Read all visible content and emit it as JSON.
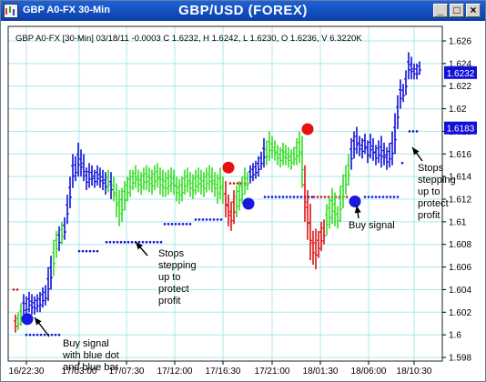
{
  "window": {
    "title": "GBP A0-FX 30-Min",
    "center_title": "GBP/USD (FOREX)",
    "buttons": {
      "minimize": "_",
      "maximize": "□",
      "close": "×"
    }
  },
  "info_line": "GBP A0-FX [30-Min] 03/18/11 -0.0003 C 1.6232, H 1.6242, L 1.6230, O 1.6236, V 6.3220K",
  "chart_data": {
    "type": "ohlc-bar",
    "x_ticks": [
      "16/22:30",
      "17/03:00",
      "17/07:30",
      "17/12:00",
      "17/16:30",
      "17/21:00",
      "18/01:30",
      "18/06:00",
      "18/10:30"
    ],
    "y_ticks": [
      "1.626",
      "1.624",
      "1.622",
      "1.62",
      "1.618",
      "1.616",
      "1.614",
      "1.612",
      "1.61",
      "1.608",
      "1.606",
      "1.604",
      "1.602",
      "1.6",
      "1.598"
    ],
    "ylim": [
      1.598,
      1.626
    ],
    "last_price": "1.6232",
    "stop_price": "1.6183",
    "grid": true,
    "colors": {
      "up_bar": "#1010d8",
      "neutral_bar": "#33dd22",
      "down_bar": "#e01010",
      "price_box": "#1010d8",
      "grid": "#a8e8ec"
    },
    "bars": [
      {
        "x": 16,
        "h": 1.6018,
        "l": 1.6002,
        "c": "r"
      },
      {
        "x": 19,
        "h": 1.602,
        "l": 1.6004,
        "c": "g"
      },
      {
        "x": 22,
        "h": 1.6028,
        "l": 1.6008,
        "c": "g"
      },
      {
        "x": 25,
        "h": 1.6036,
        "l": 1.6014,
        "c": "b"
      },
      {
        "x": 28,
        "h": 1.6034,
        "l": 1.6016,
        "c": "b"
      },
      {
        "x": 31,
        "h": 1.6038,
        "l": 1.602,
        "c": "b"
      },
      {
        "x": 34,
        "h": 1.6036,
        "l": 1.6018,
        "c": "b"
      },
      {
        "x": 37,
        "h": 1.6034,
        "l": 1.6018,
        "c": "b"
      },
      {
        "x": 40,
        "h": 1.6036,
        "l": 1.602,
        "c": "b"
      },
      {
        "x": 43,
        "h": 1.6038,
        "l": 1.602,
        "c": "b"
      },
      {
        "x": 46,
        "h": 1.6042,
        "l": 1.6024,
        "c": "b"
      },
      {
        "x": 49,
        "h": 1.6044,
        "l": 1.6026,
        "c": "b"
      },
      {
        "x": 52,
        "h": 1.606,
        "l": 1.603,
        "c": "b"
      },
      {
        "x": 55,
        "h": 1.607,
        "l": 1.604,
        "c": "b"
      },
      {
        "x": 58,
        "h": 1.6084,
        "l": 1.6052,
        "c": "g"
      },
      {
        "x": 61,
        "h": 1.6092,
        "l": 1.6068,
        "c": "g"
      },
      {
        "x": 64,
        "h": 1.6096,
        "l": 1.6074,
        "c": "b"
      },
      {
        "x": 67,
        "h": 1.61,
        "l": 1.608,
        "c": "g"
      },
      {
        "x": 70,
        "h": 1.6104,
        "l": 1.6084,
        "c": "b"
      },
      {
        "x": 73,
        "h": 1.6124,
        "l": 1.6098,
        "c": "b"
      },
      {
        "x": 76,
        "h": 1.614,
        "l": 1.6112,
        "c": "b"
      },
      {
        "x": 79,
        "h": 1.616,
        "l": 1.613,
        "c": "b"
      },
      {
        "x": 82,
        "h": 1.6158,
        "l": 1.6136,
        "c": "b"
      },
      {
        "x": 85,
        "h": 1.617,
        "l": 1.614,
        "c": "b"
      },
      {
        "x": 88,
        "h": 1.6164,
        "l": 1.614,
        "c": "b"
      },
      {
        "x": 91,
        "h": 1.616,
        "l": 1.6136,
        "c": "b"
      },
      {
        "x": 94,
        "h": 1.6148,
        "l": 1.6128,
        "c": "b"
      },
      {
        "x": 97,
        "h": 1.6152,
        "l": 1.613,
        "c": "b"
      },
      {
        "x": 100,
        "h": 1.615,
        "l": 1.6132,
        "c": "b"
      },
      {
        "x": 103,
        "h": 1.6146,
        "l": 1.613,
        "c": "b"
      },
      {
        "x": 106,
        "h": 1.615,
        "l": 1.6132,
        "c": "b"
      },
      {
        "x": 109,
        "h": 1.6148,
        "l": 1.613,
        "c": "b"
      },
      {
        "x": 112,
        "h": 1.6146,
        "l": 1.6128,
        "c": "b"
      },
      {
        "x": 115,
        "h": 1.6144,
        "l": 1.6124,
        "c": "b"
      },
      {
        "x": 118,
        "h": 1.6146,
        "l": 1.6126,
        "c": "g"
      },
      {
        "x": 121,
        "h": 1.6144,
        "l": 1.612,
        "c": "b"
      },
      {
        "x": 124,
        "h": 1.614,
        "l": 1.6118,
        "c": "g"
      },
      {
        "x": 127,
        "h": 1.6134,
        "l": 1.6104,
        "c": "g"
      },
      {
        "x": 130,
        "h": 1.6128,
        "l": 1.6096,
        "c": "g"
      },
      {
        "x": 133,
        "h": 1.613,
        "l": 1.61,
        "c": "g"
      },
      {
        "x": 136,
        "h": 1.6136,
        "l": 1.611,
        "c": "g"
      },
      {
        "x": 139,
        "h": 1.614,
        "l": 1.6118,
        "c": "g"
      },
      {
        "x": 142,
        "h": 1.6146,
        "l": 1.6122,
        "c": "g"
      },
      {
        "x": 145,
        "h": 1.6146,
        "l": 1.6128,
        "c": "g"
      },
      {
        "x": 148,
        "h": 1.615,
        "l": 1.613,
        "c": "g"
      },
      {
        "x": 151,
        "h": 1.6146,
        "l": 1.6126,
        "c": "g"
      },
      {
        "x": 154,
        "h": 1.6144,
        "l": 1.6124,
        "c": "g"
      },
      {
        "x": 157,
        "h": 1.6148,
        "l": 1.6128,
        "c": "g"
      },
      {
        "x": 160,
        "h": 1.615,
        "l": 1.6128,
        "c": "g"
      },
      {
        "x": 163,
        "h": 1.6148,
        "l": 1.6126,
        "c": "g"
      },
      {
        "x": 166,
        "h": 1.6146,
        "l": 1.6124,
        "c": "g"
      },
      {
        "x": 169,
        "h": 1.615,
        "l": 1.6128,
        "c": "g"
      },
      {
        "x": 172,
        "h": 1.6152,
        "l": 1.613,
        "c": "g"
      },
      {
        "x": 175,
        "h": 1.6148,
        "l": 1.6124,
        "c": "g"
      },
      {
        "x": 178,
        "h": 1.6146,
        "l": 1.6122,
        "c": "g"
      },
      {
        "x": 181,
        "h": 1.6144,
        "l": 1.6122,
        "c": "g"
      },
      {
        "x": 184,
        "h": 1.6146,
        "l": 1.6124,
        "c": "g"
      },
      {
        "x": 187,
        "h": 1.6148,
        "l": 1.6126,
        "c": "g"
      },
      {
        "x": 190,
        "h": 1.6146,
        "l": 1.6124,
        "c": "g"
      },
      {
        "x": 193,
        "h": 1.614,
        "l": 1.6118,
        "c": "g"
      },
      {
        "x": 196,
        "h": 1.6138,
        "l": 1.6116,
        "c": "g"
      },
      {
        "x": 199,
        "h": 1.614,
        "l": 1.6118,
        "c": "g"
      },
      {
        "x": 202,
        "h": 1.6146,
        "l": 1.6124,
        "c": "g"
      },
      {
        "x": 205,
        "h": 1.6148,
        "l": 1.6126,
        "c": "g"
      },
      {
        "x": 208,
        "h": 1.6144,
        "l": 1.6122,
        "c": "g"
      },
      {
        "x": 211,
        "h": 1.6142,
        "l": 1.612,
        "c": "g"
      },
      {
        "x": 214,
        "h": 1.6146,
        "l": 1.6124,
        "c": "g"
      },
      {
        "x": 217,
        "h": 1.6148,
        "l": 1.6126,
        "c": "g"
      },
      {
        "x": 220,
        "h": 1.6146,
        "l": 1.6124,
        "c": "g"
      },
      {
        "x": 223,
        "h": 1.6144,
        "l": 1.6122,
        "c": "g"
      },
      {
        "x": 226,
        "h": 1.6148,
        "l": 1.6126,
        "c": "g"
      },
      {
        "x": 229,
        "h": 1.615,
        "l": 1.6128,
        "c": "g"
      },
      {
        "x": 232,
        "h": 1.6148,
        "l": 1.6126,
        "c": "g"
      },
      {
        "x": 235,
        "h": 1.6144,
        "l": 1.6122,
        "c": "g"
      },
      {
        "x": 238,
        "h": 1.6142,
        "l": 1.6116,
        "c": "g"
      },
      {
        "x": 241,
        "h": 1.6148,
        "l": 1.612,
        "c": "g"
      },
      {
        "x": 244,
        "h": 1.614,
        "l": 1.6116,
        "c": "g"
      },
      {
        "x": 247,
        "h": 1.6136,
        "l": 1.6104,
        "c": "r"
      },
      {
        "x": 250,
        "h": 1.6124,
        "l": 1.6096,
        "c": "r"
      },
      {
        "x": 253,
        "h": 1.6118,
        "l": 1.6092,
        "c": "r"
      },
      {
        "x": 256,
        "h": 1.6128,
        "l": 1.6098,
        "c": "r"
      },
      {
        "x": 259,
        "h": 1.6132,
        "l": 1.6104,
        "c": "g"
      },
      {
        "x": 262,
        "h": 1.6136,
        "l": 1.611,
        "c": "g"
      },
      {
        "x": 265,
        "h": 1.614,
        "l": 1.6116,
        "c": "g"
      },
      {
        "x": 268,
        "h": 1.6148,
        "l": 1.6124,
        "c": "g"
      },
      {
        "x": 271,
        "h": 1.6144,
        "l": 1.6128,
        "c": "g"
      },
      {
        "x": 274,
        "h": 1.615,
        "l": 1.6134,
        "c": "b"
      },
      {
        "x": 277,
        "h": 1.6152,
        "l": 1.6136,
        "c": "b"
      },
      {
        "x": 280,
        "h": 1.6154,
        "l": 1.6138,
        "c": "b"
      },
      {
        "x": 283,
        "h": 1.6158,
        "l": 1.614,
        "c": "b"
      },
      {
        "x": 286,
        "h": 1.6162,
        "l": 1.6146,
        "c": "b"
      },
      {
        "x": 289,
        "h": 1.6174,
        "l": 1.6148,
        "c": "b"
      },
      {
        "x": 292,
        "h": 1.6172,
        "l": 1.615,
        "c": "g"
      },
      {
        "x": 295,
        "h": 1.618,
        "l": 1.6154,
        "c": "g"
      },
      {
        "x": 298,
        "h": 1.6176,
        "l": 1.6156,
        "c": "g"
      },
      {
        "x": 301,
        "h": 1.6172,
        "l": 1.6154,
        "c": "g"
      },
      {
        "x": 304,
        "h": 1.6168,
        "l": 1.615,
        "c": "g"
      },
      {
        "x": 307,
        "h": 1.6166,
        "l": 1.6148,
        "c": "g"
      },
      {
        "x": 310,
        "h": 1.617,
        "l": 1.615,
        "c": "g"
      },
      {
        "x": 313,
        "h": 1.6168,
        "l": 1.615,
        "c": "g"
      },
      {
        "x": 316,
        "h": 1.6166,
        "l": 1.6148,
        "c": "g"
      },
      {
        "x": 319,
        "h": 1.6164,
        "l": 1.6146,
        "c": "g"
      },
      {
        "x": 322,
        "h": 1.6166,
        "l": 1.615,
        "c": "g"
      },
      {
        "x": 325,
        "h": 1.6174,
        "l": 1.615,
        "c": "g"
      },
      {
        "x": 328,
        "h": 1.618,
        "l": 1.6152,
        "c": "g"
      },
      {
        "x": 331,
        "h": 1.6176,
        "l": 1.613,
        "c": "g"
      },
      {
        "x": 334,
        "h": 1.615,
        "l": 1.61,
        "c": "r"
      },
      {
        "x": 337,
        "h": 1.6128,
        "l": 1.6084,
        "c": "r"
      },
      {
        "x": 340,
        "h": 1.6116,
        "l": 1.6066,
        "c": "r"
      },
      {
        "x": 343,
        "h": 1.6092,
        "l": 1.6062,
        "c": "r"
      },
      {
        "x": 346,
        "h": 1.6094,
        "l": 1.6058,
        "c": "r"
      },
      {
        "x": 349,
        "h": 1.6092,
        "l": 1.6068,
        "c": "r"
      },
      {
        "x": 352,
        "h": 1.61,
        "l": 1.6074,
        "c": "r"
      },
      {
        "x": 355,
        "h": 1.6102,
        "l": 1.608,
        "c": "r"
      },
      {
        "x": 358,
        "h": 1.6116,
        "l": 1.6088,
        "c": "g"
      },
      {
        "x": 361,
        "h": 1.6122,
        "l": 1.6094,
        "c": "g"
      },
      {
        "x": 364,
        "h": 1.613,
        "l": 1.6098,
        "c": "g"
      },
      {
        "x": 367,
        "h": 1.6126,
        "l": 1.6096,
        "c": "g"
      },
      {
        "x": 370,
        "h": 1.6114,
        "l": 1.6094,
        "c": "g"
      },
      {
        "x": 373,
        "h": 1.6132,
        "l": 1.61,
        "c": "g"
      },
      {
        "x": 376,
        "h": 1.6142,
        "l": 1.6112,
        "c": "g"
      },
      {
        "x": 379,
        "h": 1.615,
        "l": 1.6124,
        "c": "g"
      },
      {
        "x": 382,
        "h": 1.616,
        "l": 1.6132,
        "c": "g"
      },
      {
        "x": 385,
        "h": 1.6174,
        "l": 1.6146,
        "c": "b"
      },
      {
        "x": 388,
        "h": 1.618,
        "l": 1.6156,
        "c": "b"
      },
      {
        "x": 391,
        "h": 1.6184,
        "l": 1.616,
        "c": "b"
      },
      {
        "x": 394,
        "h": 1.6176,
        "l": 1.6158,
        "c": "b"
      },
      {
        "x": 397,
        "h": 1.6174,
        "l": 1.6156,
        "c": "b"
      },
      {
        "x": 400,
        "h": 1.6178,
        "l": 1.616,
        "c": "b"
      },
      {
        "x": 403,
        "h": 1.6172,
        "l": 1.6152,
        "c": "b"
      },
      {
        "x": 406,
        "h": 1.6178,
        "l": 1.6156,
        "c": "b"
      },
      {
        "x": 409,
        "h": 1.6174,
        "l": 1.6154,
        "c": "b"
      },
      {
        "x": 412,
        "h": 1.6168,
        "l": 1.615,
        "c": "b"
      },
      {
        "x": 415,
        "h": 1.6172,
        "l": 1.6152,
        "c": "b"
      },
      {
        "x": 418,
        "h": 1.6176,
        "l": 1.6148,
        "c": "b"
      },
      {
        "x": 421,
        "h": 1.617,
        "l": 1.615,
        "c": "b"
      },
      {
        "x": 424,
        "h": 1.6166,
        "l": 1.6146,
        "c": "b"
      },
      {
        "x": 427,
        "h": 1.617,
        "l": 1.6148,
        "c": "b"
      },
      {
        "x": 430,
        "h": 1.618,
        "l": 1.615,
        "c": "b"
      },
      {
        "x": 433,
        "h": 1.6196,
        "l": 1.616,
        "c": "b"
      },
      {
        "x": 436,
        "h": 1.6212,
        "l": 1.6182,
        "c": "b"
      },
      {
        "x": 439,
        "h": 1.6226,
        "l": 1.62,
        "c": "b"
      },
      {
        "x": 442,
        "h": 1.6222,
        "l": 1.6206,
        "c": "b"
      },
      {
        "x": 445,
        "h": 1.6234,
        "l": 1.6212,
        "c": "b"
      },
      {
        "x": 448,
        "h": 1.625,
        "l": 1.6226,
        "c": "b"
      },
      {
        "x": 451,
        "h": 1.6246,
        "l": 1.6226,
        "c": "b"
      },
      {
        "x": 454,
        "h": 1.624,
        "l": 1.6226,
        "c": "b"
      },
      {
        "x": 457,
        "h": 1.624,
        "l": 1.6226,
        "c": "b"
      },
      {
        "x": 460,
        "h": 1.6242,
        "l": 1.623,
        "c": "b"
      }
    ],
    "stop_segments": [
      {
        "x1": 14,
        "x2": 18,
        "y": 1.604,
        "c": "r"
      },
      {
        "x1": 28,
        "x2": 66,
        "y": 1.6,
        "c": "b"
      },
      {
        "x1": 86,
        "x2": 108,
        "y": 1.6074,
        "c": "b"
      },
      {
        "x1": 116,
        "x2": 178,
        "y": 1.6082,
        "c": "b"
      },
      {
        "x1": 180,
        "x2": 210,
        "y": 1.6098,
        "c": "b"
      },
      {
        "x1": 214,
        "x2": 244,
        "y": 1.6102,
        "c": "b"
      },
      {
        "x1": 252,
        "x2": 268,
        "y": 1.6134,
        "c": "r"
      },
      {
        "x1": 290,
        "x2": 342,
        "y": 1.6122,
        "c": "b"
      },
      {
        "x1": 344,
        "x2": 380,
        "y": 1.6122,
        "c": "r"
      },
      {
        "x1": 400,
        "x2": 438,
        "y": 1.6122,
        "c": "b"
      },
      {
        "x1": 441,
        "x2": 441,
        "y": 1.6152,
        "c": "b"
      },
      {
        "x1": 449,
        "x2": 457,
        "y": 1.618,
        "c": "b"
      }
    ],
    "signal_dots": [
      {
        "x": 29,
        "y": 1.6014,
        "c": "b"
      },
      {
        "x": 250,
        "y": 1.6148,
        "c": "r"
      },
      {
        "x": 272,
        "y": 1.6116,
        "c": "b"
      },
      {
        "x": 337,
        "y": 1.6182,
        "c": "r"
      },
      {
        "x": 389,
        "y": 1.6118,
        "c": "b"
      }
    ],
    "annotations": [
      {
        "lines": [
          "Buy signal",
          "with blue dot",
          "and blue bar"
        ],
        "tx": 68,
        "ty": 358,
        "arrow": [
          53,
          347,
          37,
          326
        ]
      },
      {
        "lines": [
          "Stops",
          "stepping",
          "up to",
          "protect",
          "profit"
        ],
        "tx": 173,
        "ty": 259,
        "arrow": [
          161,
          258,
          148,
          243
        ]
      },
      {
        "lines": [
          "Buy signal"
        ],
        "tx": 382,
        "ty": 228,
        "arrow": [
          393,
          217,
          391,
          203
        ]
      },
      {
        "lines": [
          "Stops",
          "stepping",
          "up to",
          "protect",
          "profit"
        ],
        "tx": 458,
        "ty": 165,
        "arrow": [
          463,
          154,
          452,
          139
        ]
      }
    ]
  }
}
